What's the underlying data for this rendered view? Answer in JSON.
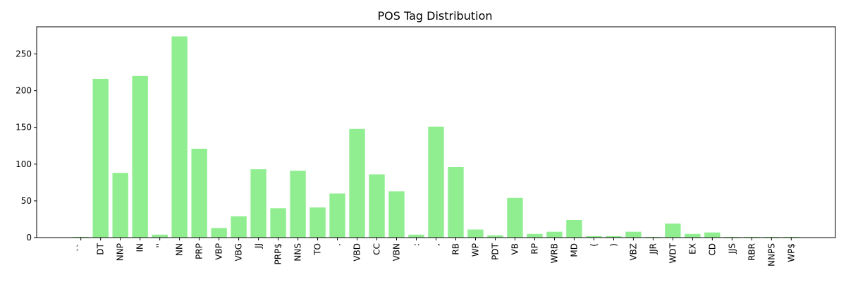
{
  "chart_data": {
    "type": "bar",
    "title": "POS Tag Distribution",
    "xlabel": "",
    "ylabel": "",
    "ylim": [
      0,
      287
    ],
    "yticks": [
      0,
      50,
      100,
      150,
      200,
      250
    ],
    "bar_color": "#90ee90",
    "grid": false,
    "categories": [
      "``",
      "DT",
      "NNP",
      "IN",
      "''",
      "NN",
      "PRP",
      "VBP",
      "VBG",
      "JJ",
      "PRP$",
      "NNS",
      "TO",
      ".",
      "VBD",
      "CC",
      "VBN",
      ":",
      ",",
      "RB",
      "WP",
      "PDT",
      "VB",
      "RP",
      "WRB",
      "MD",
      "(",
      ")",
      "VBZ",
      "JJR",
      "WDT",
      "EX",
      "CD",
      "JJS",
      "RBR",
      "NNPS",
      "WP$"
    ],
    "values": [
      1,
      216,
      88,
      220,
      4,
      274,
      121,
      13,
      29,
      93,
      40,
      91,
      41,
      60,
      148,
      86,
      63,
      4,
      151,
      96,
      11,
      3,
      54,
      5,
      8,
      24,
      2,
      2,
      8,
      1,
      19,
      5,
      7,
      1,
      1,
      1,
      1
    ]
  }
}
